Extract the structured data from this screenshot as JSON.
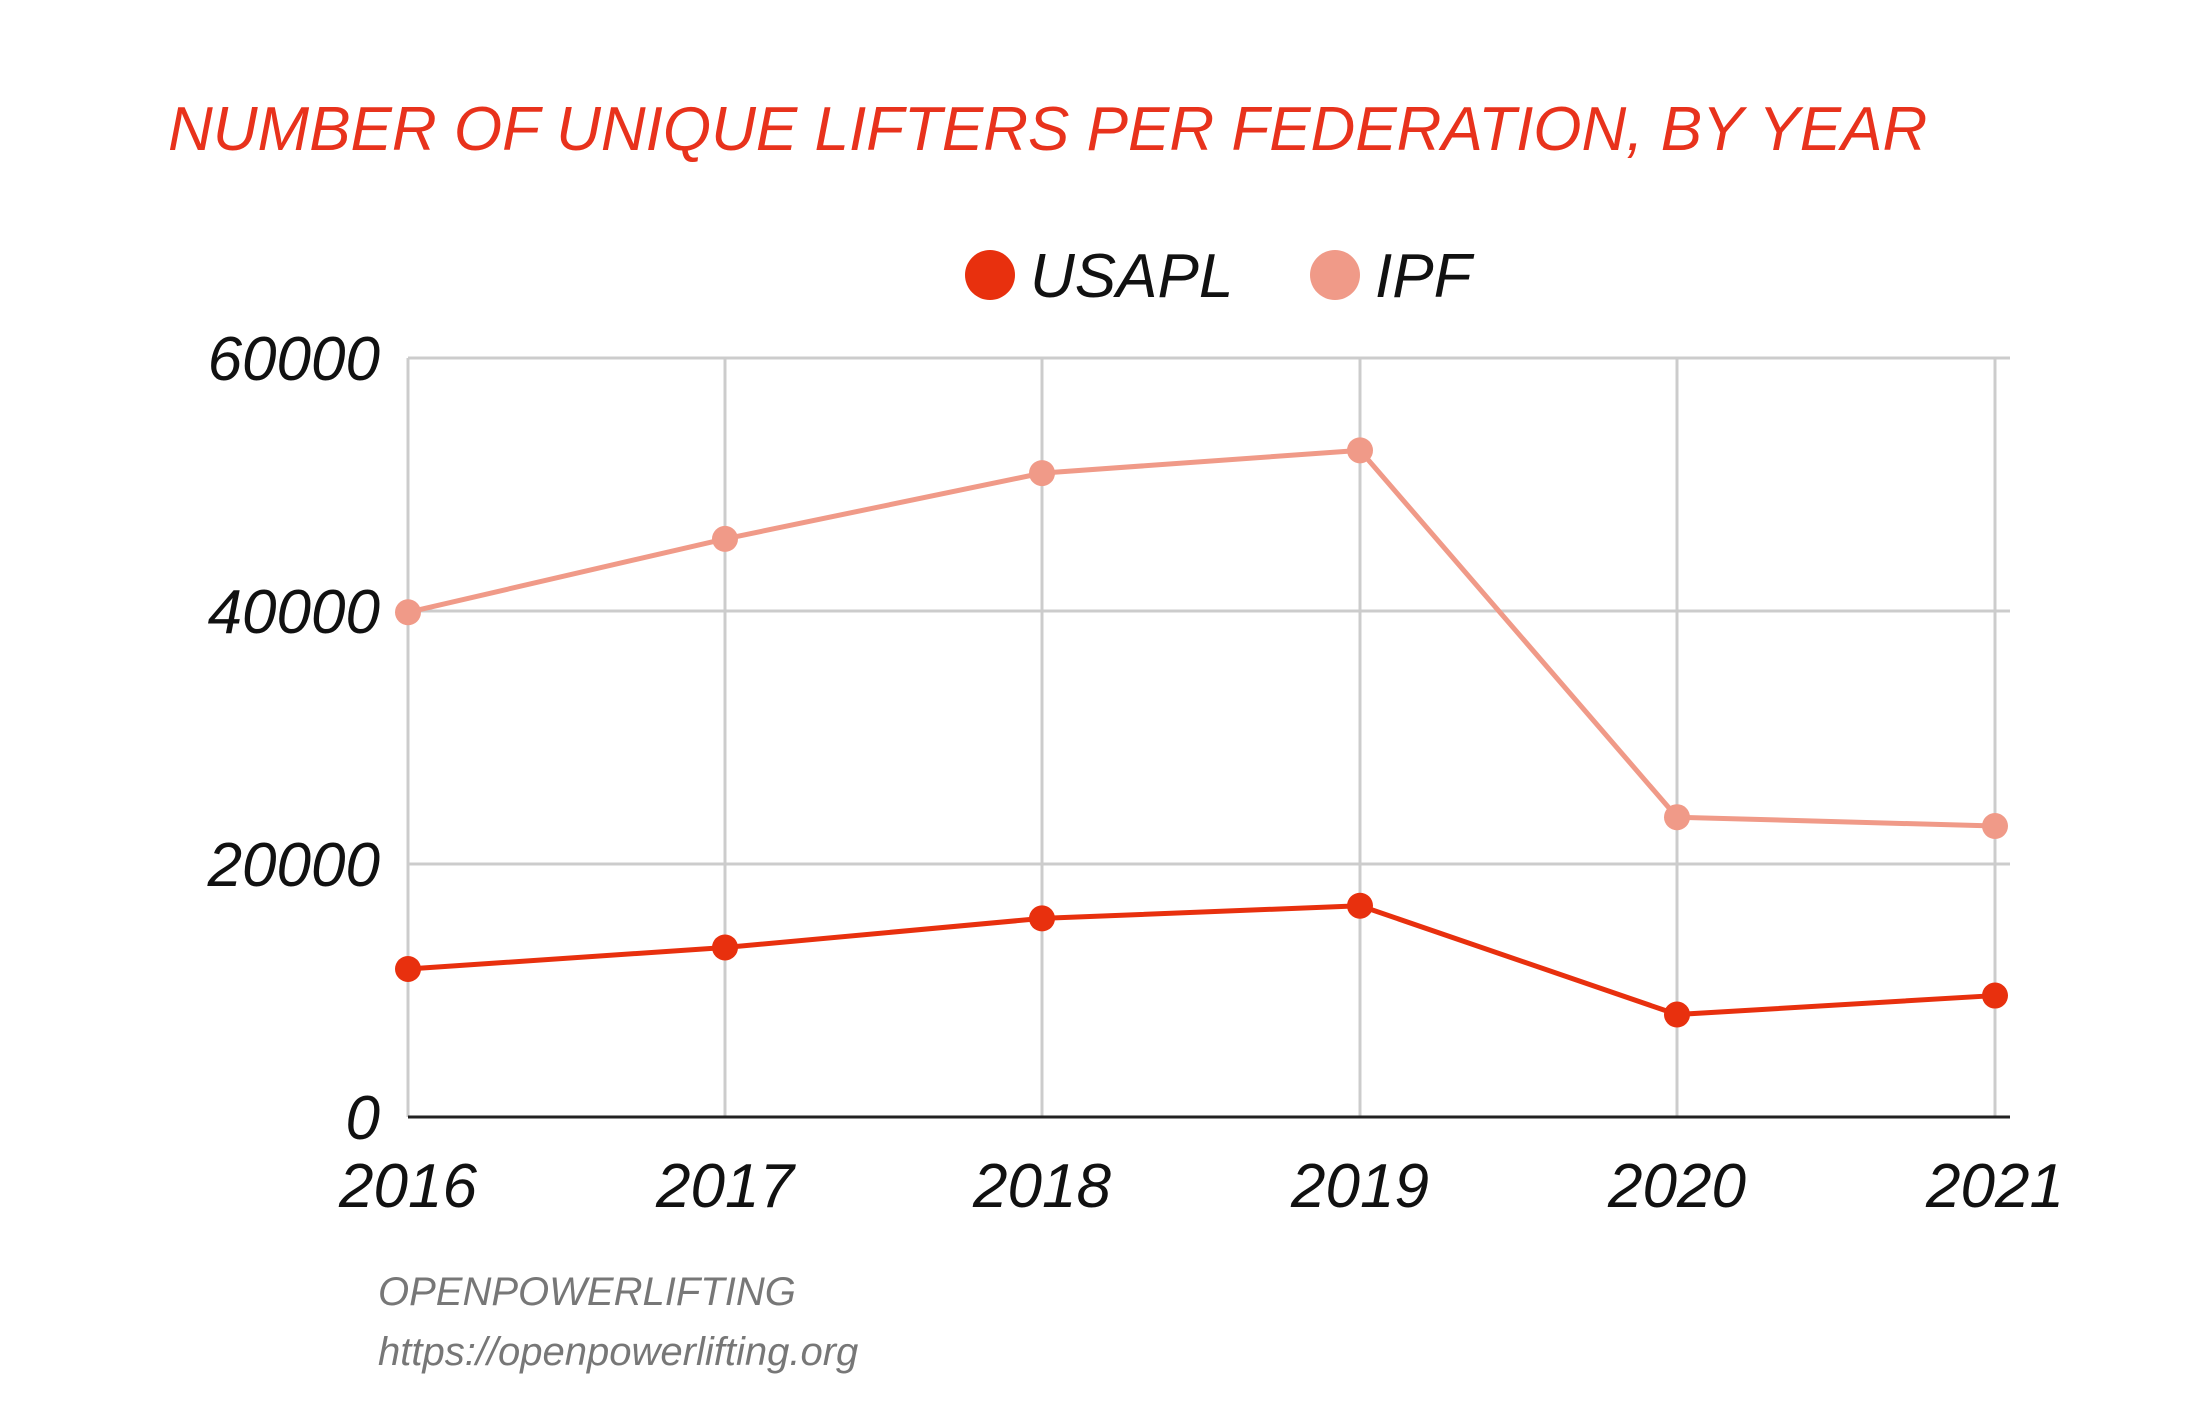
{
  "colors": {
    "title": "#e8321c",
    "usapl": "#e8300e",
    "ipf": "#f09a88",
    "grid": "#cccccc",
    "axis": "#222222",
    "text": "#111111",
    "source": "#777777"
  },
  "source": {
    "name": "OPENPOWERLIFTING",
    "url": "https://openpowerlifting.org"
  },
  "chart_data": {
    "type": "line",
    "title": "NUMBER OF UNIQUE LIFTERS PER FEDERATION, BY YEAR",
    "xlabel": "",
    "ylabel": "",
    "x": [
      "2016",
      "2017",
      "2018",
      "2019",
      "2020",
      "2021"
    ],
    "series": [
      {
        "name": "USAPL",
        "values": [
          11700,
          13400,
          15700,
          16700,
          8100,
          9600
        ]
      },
      {
        "name": "IPF",
        "values": [
          39900,
          45700,
          50900,
          52700,
          23700,
          23000
        ]
      }
    ],
    "ylim": [
      0,
      60000
    ],
    "yticks": [
      "0",
      "20000",
      "40000",
      "60000"
    ],
    "grid": true,
    "legend": "top-center"
  }
}
